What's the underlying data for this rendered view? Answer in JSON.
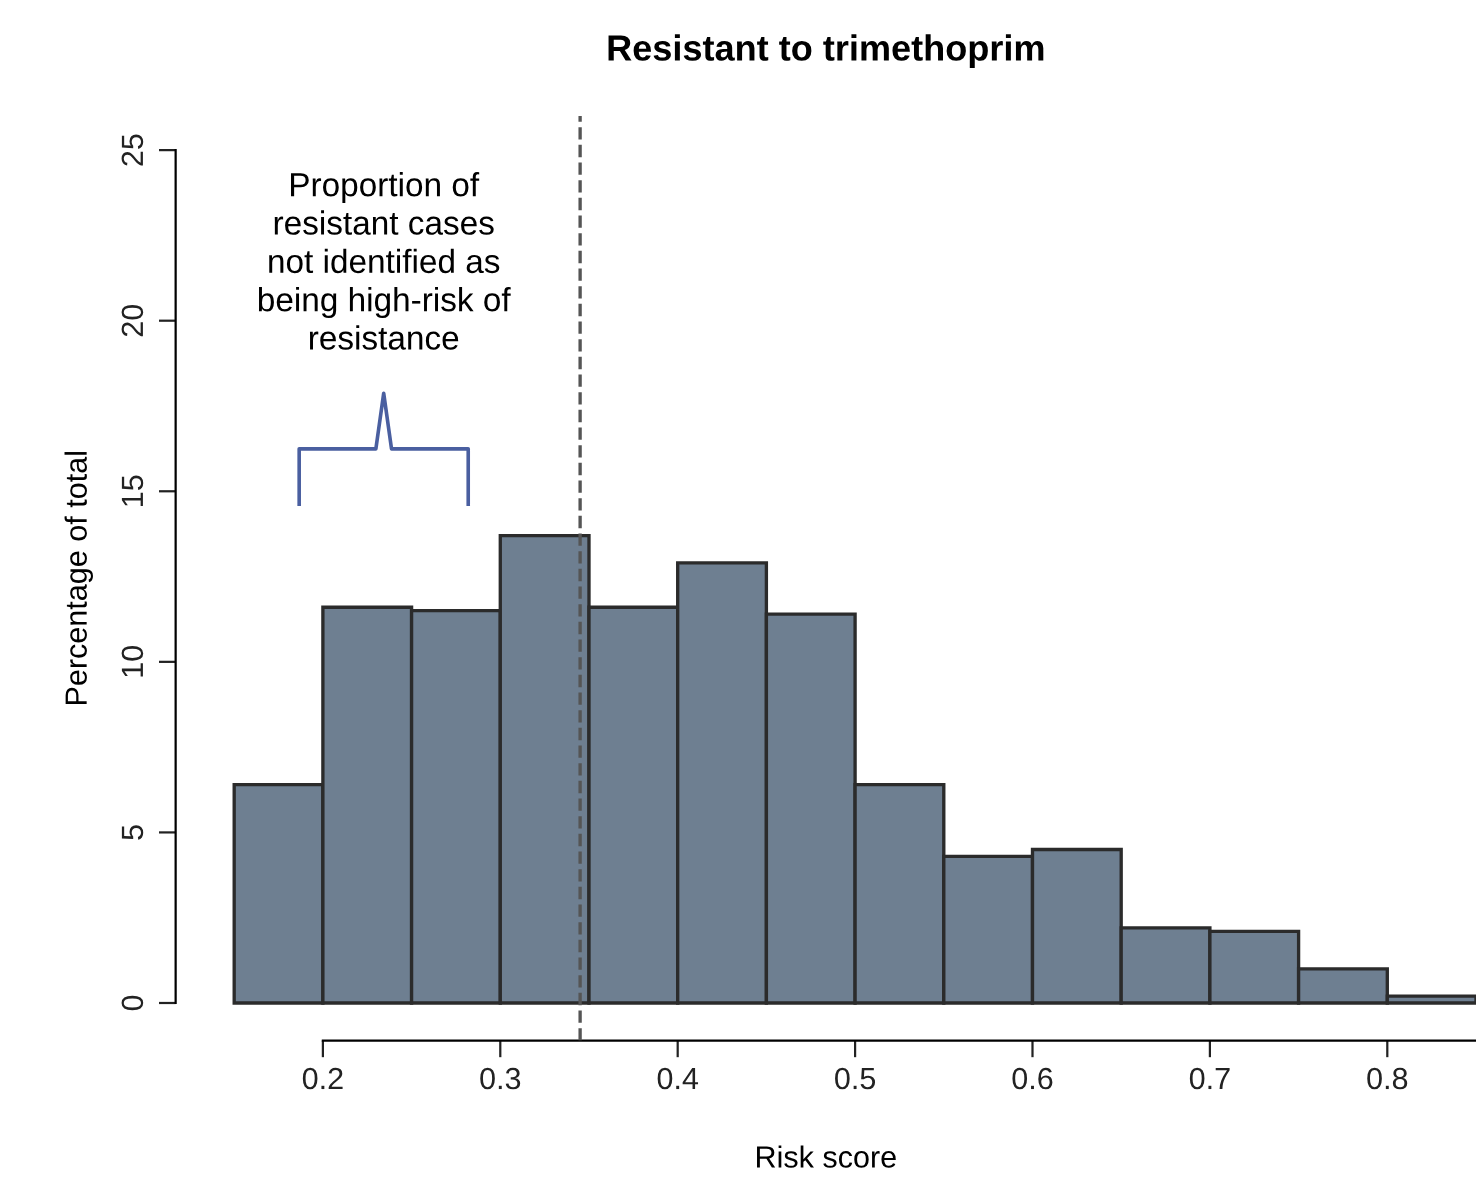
{
  "chart_data": {
    "type": "histogram",
    "title": "Resistant to trimethoprim",
    "xlabel": "Risk score",
    "ylabel": "Percentage of total",
    "bins": [
      0.15,
      0.2,
      0.25,
      0.3,
      0.35,
      0.4,
      0.45,
      0.5,
      0.55,
      0.6,
      0.65,
      0.7,
      0.75,
      0.8,
      0.85
    ],
    "values": [
      6.4,
      11.6,
      11.5,
      13.7,
      11.6,
      12.9,
      11.4,
      6.4,
      4.3,
      4.5,
      2.2,
      2.1,
      1.0,
      0.2
    ],
    "color": "#6e7f91",
    "xlim": [
      0.117,
      0.85
    ],
    "ylim": [
      -1.1,
      26
    ],
    "xticks": [
      0.2,
      0.3,
      0.4,
      0.5,
      0.6,
      0.7,
      0.8
    ],
    "yticks": [
      0,
      5,
      10,
      15,
      20,
      25
    ],
    "ref_lines": [
      {
        "axis": "x",
        "value": 0.345,
        "line_style": "dashed",
        "color": "#555555"
      }
    ],
    "annotations": [
      "Proportion of\nresistant cases\nnot identified as\nbeing high-risk of\nresistance"
    ],
    "grid": false
  }
}
